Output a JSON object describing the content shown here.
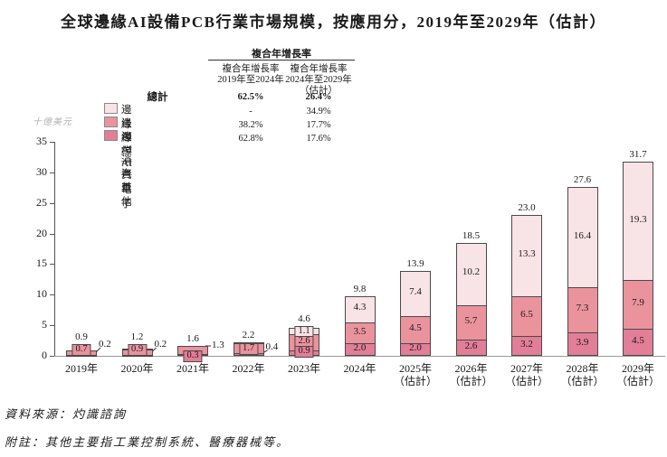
{
  "title": "全球邊緣AI設備PCB行業市場規模，按應用分，2019年至2029年（估計）",
  "y_axis": {
    "unit_label": "十億美元",
    "ticks": [
      0,
      5,
      10,
      15,
      20,
      25,
      30,
      35
    ]
  },
  "legend": {
    "total_label": "總計",
    "items": [
      {
        "label": "邊緣AI — 消費電子",
        "color": "#f8e3e7"
      },
      {
        "label": "邊緣AI — 汽車",
        "color": "#ea939d"
      },
      {
        "label": "邊緣AI — 其他",
        "color": "#e27e97"
      }
    ]
  },
  "cagr_table": {
    "spanner": "複合年增長率",
    "col1_header": [
      "複合年增長率",
      "2019年至2024年"
    ],
    "col2_header": [
      "複合年增長率",
      "2024年至2029年",
      "（估計）"
    ],
    "rows": [
      {
        "label": "總計",
        "c1": "62.5%",
        "c2": "26.4%",
        "bold": true
      },
      {
        "label": "邊緣AI — 消費電子",
        "c1": "-",
        "c2": "34.9%",
        "bold": false
      },
      {
        "label": "邊緣AI — 汽車",
        "c1": "38.2%",
        "c2": "17.7%",
        "bold": false
      },
      {
        "label": "邊緣AI — 其他",
        "c1": "62.8%",
        "c2": "17.6%",
        "bold": false
      }
    ]
  },
  "chart_data": {
    "type": "bar",
    "stacked": true,
    "title": "全球邊緣AI設備PCB行業市場規模，按應用分，2019年至2029年（估計）",
    "ylabel": "十億美元",
    "ylim": [
      0,
      35
    ],
    "grid": false,
    "legend_position": "top-left",
    "categories": [
      {
        "label": "2019年",
        "sublabel": ""
      },
      {
        "label": "2020年",
        "sublabel": ""
      },
      {
        "label": "2021年",
        "sublabel": ""
      },
      {
        "label": "2022年",
        "sublabel": ""
      },
      {
        "label": "2023年",
        "sublabel": ""
      },
      {
        "label": "2024年",
        "sublabel": ""
      },
      {
        "label": "2025年",
        "sublabel": "（估計）"
      },
      {
        "label": "2026年",
        "sublabel": "（估計）"
      },
      {
        "label": "2027年",
        "sublabel": "（估計）"
      },
      {
        "label": "2028年",
        "sublabel": "（估計）"
      },
      {
        "label": "2029年",
        "sublabel": "（估計）"
      }
    ],
    "series": [
      {
        "name": "邊緣AI — 消費電子",
        "color": "#f8e3e7",
        "values": [
          0,
          0,
          0,
          0,
          1.1,
          4.3,
          7.4,
          10.2,
          13.3,
          16.4,
          19.3
        ]
      },
      {
        "name": "邊緣AI — 汽車",
        "color": "#ea939d",
        "values": [
          0.7,
          0.9,
          1.3,
          1.7,
          2.6,
          3.5,
          4.5,
          5.7,
          6.5,
          7.3,
          7.9
        ]
      },
      {
        "name": "邊緣AI — 其他",
        "color": "#e27e97",
        "values": [
          0.2,
          0.2,
          0.3,
          0.4,
          0.9,
          2.0,
          2.0,
          2.6,
          3.2,
          3.9,
          4.5
        ]
      }
    ],
    "totals": [
      0.9,
      1.2,
      1.6,
      2.2,
      4.6,
      9.8,
      13.9,
      18.5,
      23.0,
      27.6,
      31.7
    ]
  },
  "footer": {
    "source": "資料來源：灼識諮詢",
    "note": "附註：其他主要指工業控制系統、醫療器械等。"
  }
}
